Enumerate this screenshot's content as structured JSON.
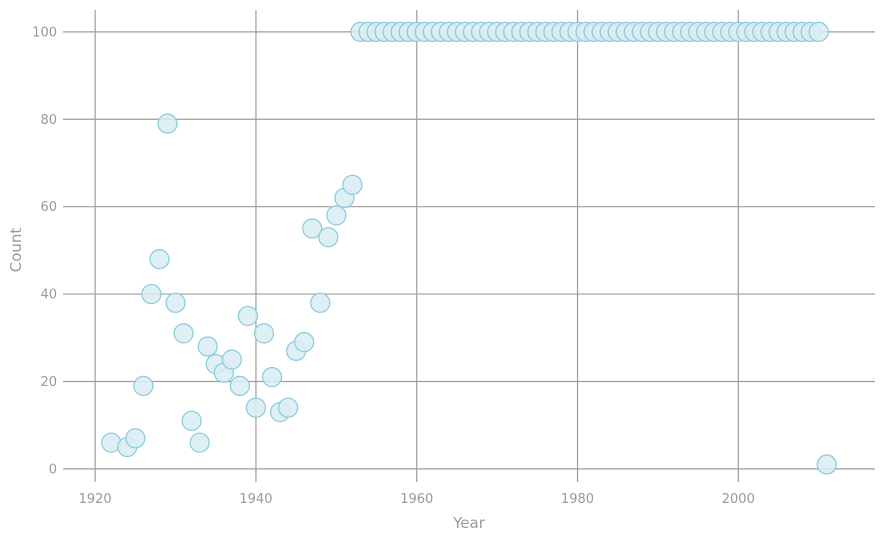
{
  "chart_data": {
    "type": "scatter",
    "title": "",
    "xlabel": "Year",
    "ylabel": "Count",
    "xlim": [
      1916,
      2017
    ],
    "ylim": [
      -3,
      105
    ],
    "xticks": [
      1920,
      1940,
      1960,
      1980,
      2000
    ],
    "yticks": [
      0,
      20,
      40,
      60,
      80,
      100
    ],
    "grid": true,
    "colors": {
      "marker_fill": "#d9edf2",
      "marker_edge": "#8cc9dd",
      "grid": "#9e9e9e",
      "text": "#999999"
    },
    "points": [
      [
        1922,
        6
      ],
      [
        1924,
        5
      ],
      [
        1925,
        7
      ],
      [
        1926,
        19
      ],
      [
        1927,
        40
      ],
      [
        1928,
        48
      ],
      [
        1929,
        79
      ],
      [
        1930,
        38
      ],
      [
        1931,
        31
      ],
      [
        1932,
        11
      ],
      [
        1933,
        6
      ],
      [
        1934,
        28
      ],
      [
        1935,
        24
      ],
      [
        1936,
        22
      ],
      [
        1937,
        25
      ],
      [
        1938,
        19
      ],
      [
        1939,
        35
      ],
      [
        1940,
        14
      ],
      [
        1941,
        31
      ],
      [
        1942,
        21
      ],
      [
        1943,
        13
      ],
      [
        1944,
        14
      ],
      [
        1945,
        27
      ],
      [
        1946,
        29
      ],
      [
        1947,
        55
      ],
      [
        1948,
        38
      ],
      [
        1949,
        53
      ],
      [
        1950,
        58
      ],
      [
        1951,
        62
      ],
      [
        1952,
        65
      ],
      [
        1953,
        100
      ],
      [
        1954,
        100
      ],
      [
        1955,
        100
      ],
      [
        1956,
        100
      ],
      [
        1957,
        100
      ],
      [
        1958,
        100
      ],
      [
        1959,
        100
      ],
      [
        1960,
        100
      ],
      [
        1961,
        100
      ],
      [
        1962,
        100
      ],
      [
        1963,
        100
      ],
      [
        1964,
        100
      ],
      [
        1965,
        100
      ],
      [
        1966,
        100
      ],
      [
        1967,
        100
      ],
      [
        1968,
        100
      ],
      [
        1969,
        100
      ],
      [
        1970,
        100
      ],
      [
        1971,
        100
      ],
      [
        1972,
        100
      ],
      [
        1973,
        100
      ],
      [
        1974,
        100
      ],
      [
        1975,
        100
      ],
      [
        1976,
        100
      ],
      [
        1977,
        100
      ],
      [
        1978,
        100
      ],
      [
        1979,
        100
      ],
      [
        1980,
        100
      ],
      [
        1981,
        100
      ],
      [
        1982,
        100
      ],
      [
        1983,
        100
      ],
      [
        1984,
        100
      ],
      [
        1985,
        100
      ],
      [
        1986,
        100
      ],
      [
        1987,
        100
      ],
      [
        1988,
        100
      ],
      [
        1989,
        100
      ],
      [
        1990,
        100
      ],
      [
        1991,
        100
      ],
      [
        1992,
        100
      ],
      [
        1993,
        100
      ],
      [
        1994,
        100
      ],
      [
        1995,
        100
      ],
      [
        1996,
        100
      ],
      [
        1997,
        100
      ],
      [
        1998,
        100
      ],
      [
        1999,
        100
      ],
      [
        2000,
        100
      ],
      [
        2001,
        100
      ],
      [
        2002,
        100
      ],
      [
        2003,
        100
      ],
      [
        2004,
        100
      ],
      [
        2005,
        100
      ],
      [
        2006,
        100
      ],
      [
        2007,
        100
      ],
      [
        2008,
        100
      ],
      [
        2009,
        100
      ],
      [
        2010,
        100
      ],
      [
        2011,
        1
      ]
    ]
  }
}
